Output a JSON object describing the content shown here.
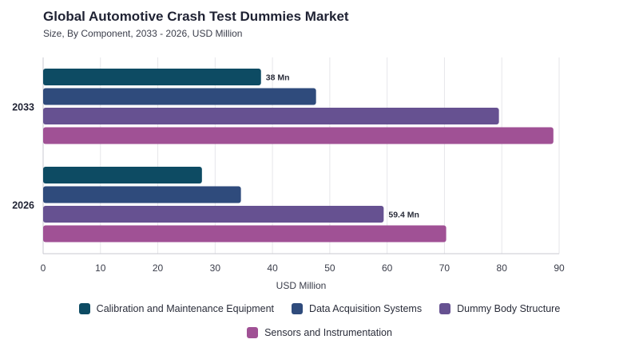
{
  "header": {
    "title": "Global Automotive Crash Test Dummies Market",
    "subtitle": "Size, By Component, 2033 - 2026, USD Million"
  },
  "chart_data": {
    "type": "bar",
    "orientation": "horizontal",
    "categories": [
      "2033",
      "2026"
    ],
    "series": [
      {
        "name": "Calibration and Maintenance Equipment",
        "color": "#0d4b63",
        "values": [
          38,
          27.7
        ]
      },
      {
        "name": "Data Acquisition Systems",
        "color": "#2f4b7c",
        "values": [
          47.6,
          34.5
        ]
      },
      {
        "name": "Dummy Body Structure",
        "color": "#665191",
        "values": [
          79.5,
          59.4
        ]
      },
      {
        "name": "Sensors and Instrumentation",
        "color": "#a05195",
        "values": [
          89,
          70.3
        ]
      }
    ],
    "data_labels": [
      {
        "series": 0,
        "category": 0,
        "text": "38 Mn"
      },
      {
        "series": 2,
        "category": 1,
        "text": "59.4 Mn"
      }
    ],
    "xlabel": "USD Million",
    "xlim": [
      0,
      90
    ],
    "xticks": [
      0,
      10,
      20,
      30,
      40,
      50,
      60,
      70,
      80,
      90
    ],
    "grid": true,
    "legend_position": "bottom"
  }
}
